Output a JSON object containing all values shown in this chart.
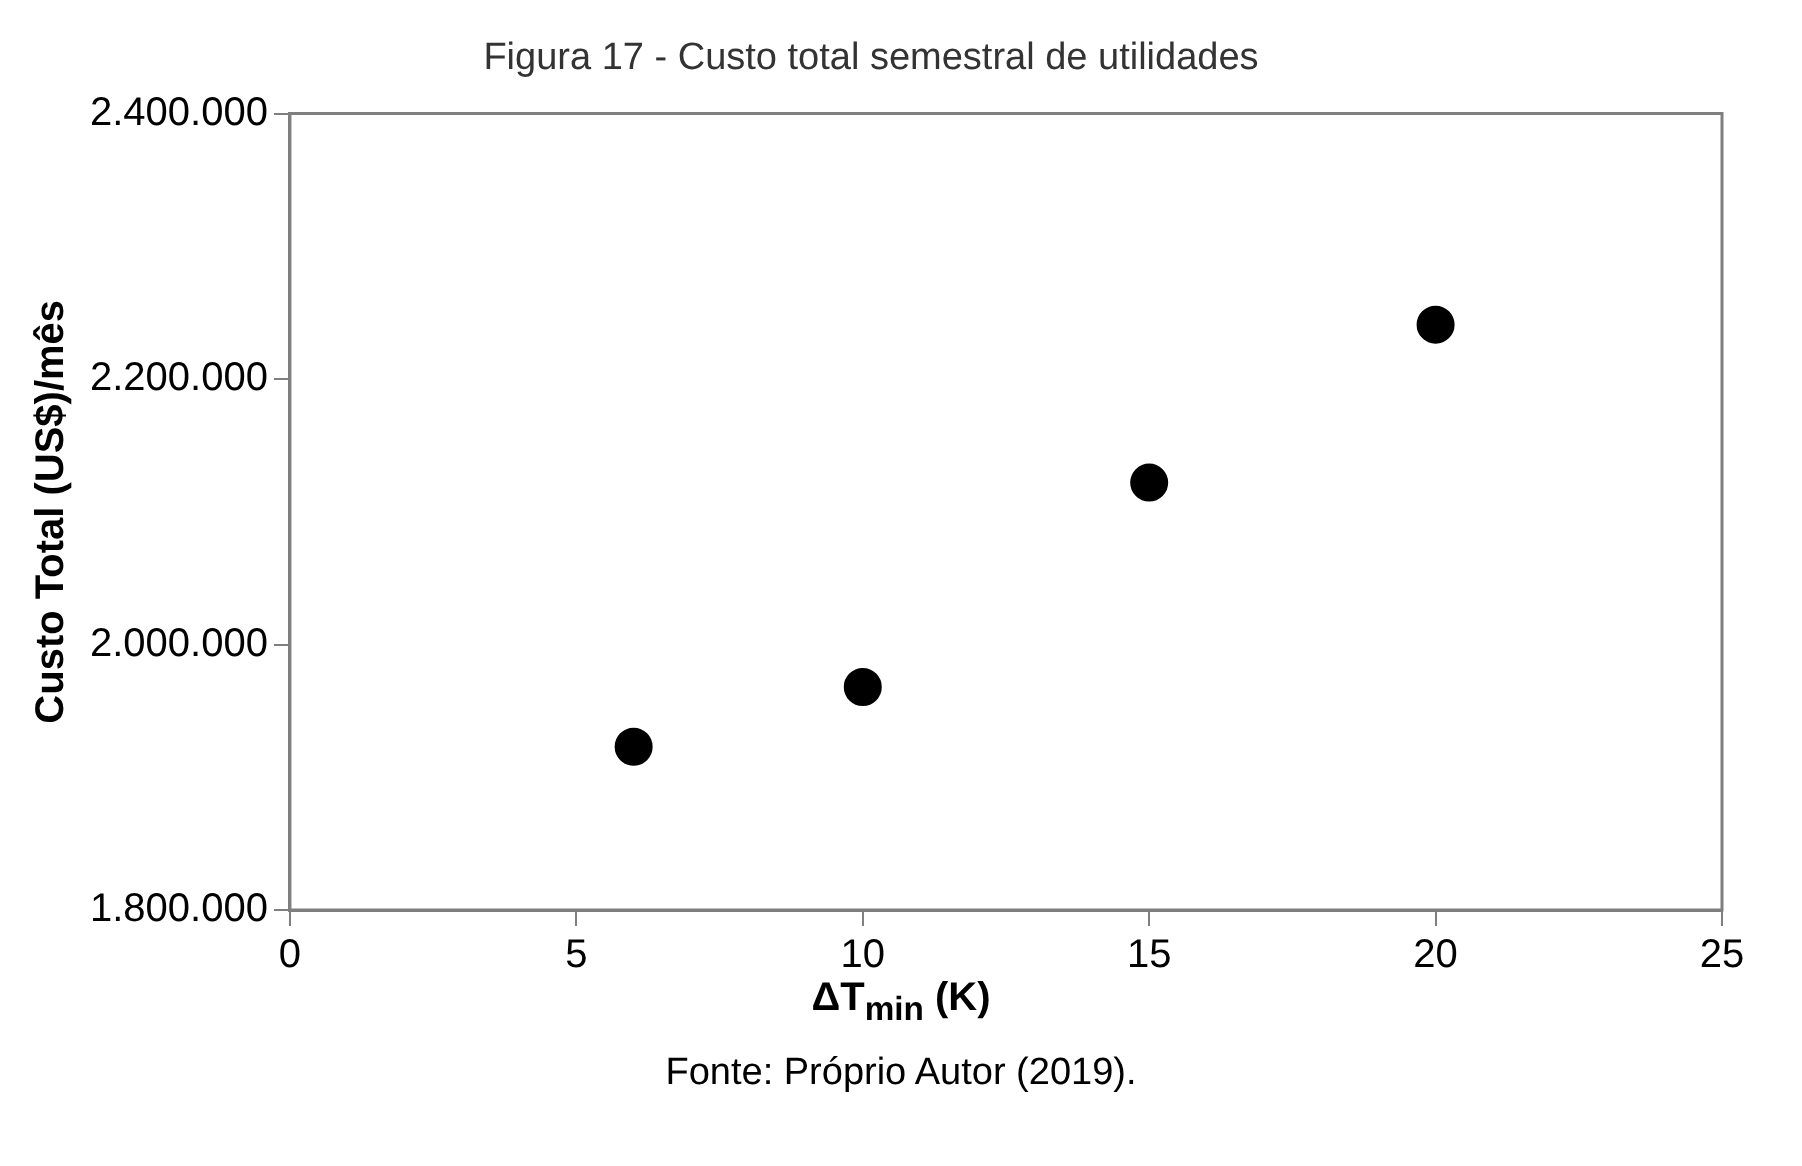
{
  "chart_data": {
    "type": "scatter",
    "title": "Figura 17 - Custo total semestral de utilidades",
    "xlabel": "ΔT$_{min}$ (K)",
    "ylabel": "Custo Total (US$)/mês",
    "annotations": [
      "Fonte: Próprio Autor (2019)."
    ],
    "x": [
      6,
      10,
      15,
      20
    ],
    "series": [
      {
        "color": "#000000",
        "values": [
          1923000,
          1968000,
          2122000,
          2241000
        ]
      }
    ],
    "xlim": [
      0,
      25
    ],
    "xticks": [
      0,
      5,
      10,
      15,
      20,
      25
    ],
    "ylim": [
      1800000,
      2400000
    ],
    "yticks": [
      {
        "value": 1800000,
        "label": "1.800.000"
      },
      {
        "value": 2000000,
        "label": "2.000.000"
      },
      {
        "value": 2200000,
        "label": "2.200.000"
      },
      {
        "value": 2400000,
        "label": "2.400.000"
      }
    ],
    "grid": false,
    "legend": false,
    "marker": "circle"
  }
}
